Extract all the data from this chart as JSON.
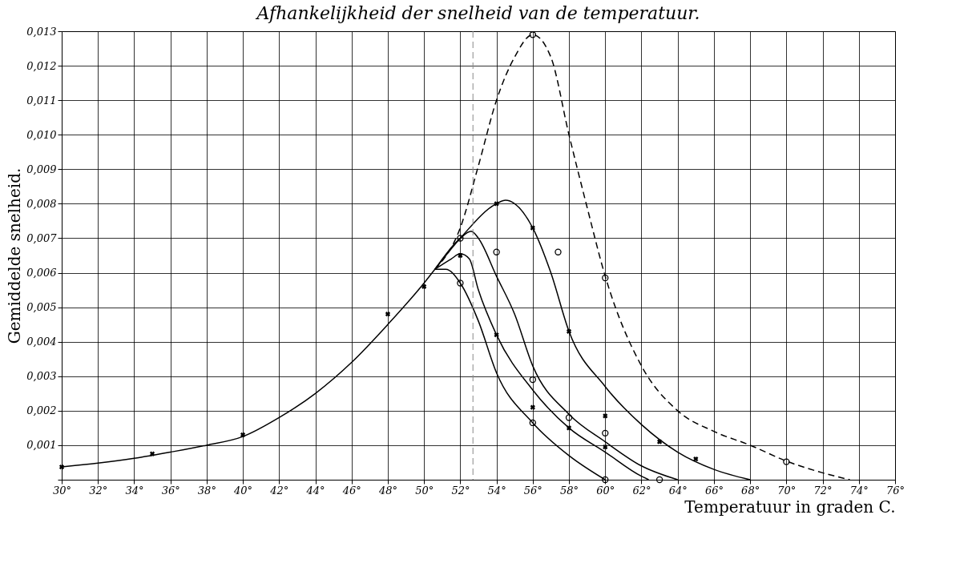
{
  "chart_data": {
    "type": "line",
    "title": "Afhankelijkheid der snelheid van de temperatuur.",
    "xlabel": "Temperatuur in graden C.",
    "ylabel": "Gemiddelde snelheid.",
    "xlim": [
      30,
      76
    ],
    "xticks": [
      {
        "value": 30,
        "label": "30°"
      },
      {
        "value": 32,
        "label": "32°"
      },
      {
        "value": 34,
        "label": "34°"
      },
      {
        "value": 36,
        "label": "36°"
      },
      {
        "value": 38,
        "label": "38°"
      },
      {
        "value": 40,
        "label": "40°"
      },
      {
        "value": 42,
        "label": "42°"
      },
      {
        "value": 44,
        "label": "44°"
      },
      {
        "value": 46,
        "label": "46°"
      },
      {
        "value": 48,
        "label": "48°"
      },
      {
        "value": 50,
        "label": "50°"
      },
      {
        "value": 52,
        "label": "52°"
      },
      {
        "value": 54,
        "label": "54°"
      },
      {
        "value": 56,
        "label": "56°"
      },
      {
        "value": 58,
        "label": "58°"
      },
      {
        "value": 60,
        "label": "60°"
      },
      {
        "value": 62,
        "label": "62°"
      },
      {
        "value": 64,
        "label": "64°"
      },
      {
        "value": 66,
        "label": "66°"
      },
      {
        "value": 68,
        "label": "68°"
      },
      {
        "value": 70,
        "label": "70°"
      },
      {
        "value": 72,
        "label": "72°"
      },
      {
        "value": 74,
        "label": "74°"
      },
      {
        "value": 76,
        "label": "76°"
      }
    ],
    "ylim": [
      0,
      0.013
    ],
    "yticks": [
      {
        "value": 0,
        "label": null
      },
      {
        "value": 0.001,
        "label": "0,001"
      },
      {
        "value": 0.002,
        "label": "0,002"
      },
      {
        "value": 0.003,
        "label": "0,003"
      },
      {
        "value": 0.004,
        "label": "0,004"
      },
      {
        "value": 0.005,
        "label": "0,005"
      },
      {
        "value": 0.006,
        "label": "0,006"
      },
      {
        "value": 0.007,
        "label": "0,007"
      },
      {
        "value": 0.008,
        "label": "0,008"
      },
      {
        "value": 0.009,
        "label": "0,009"
      },
      {
        "value": 0.01,
        "label": "0,010"
      },
      {
        "value": 0.011,
        "label": "0,011"
      },
      {
        "value": 0.012,
        "label": "0,012"
      },
      {
        "value": 0.013,
        "label": "0,013"
      }
    ],
    "grid": true,
    "ref_lines": [
      {
        "axis": "x",
        "value": 52.7,
        "line_style": "dashed",
        "color": "#888888"
      }
    ],
    "series": [
      {
        "color": "#000000",
        "line_style": "solid",
        "marker": "none",
        "x": [
          30,
          32,
          34,
          36,
          38,
          40,
          42,
          44,
          46,
          48,
          50,
          50.6
        ],
        "values": [
          0.00037,
          0.00048,
          0.00062,
          0.0008,
          0.001,
          0.00125,
          0.0018,
          0.0025,
          0.0034,
          0.0045,
          0.0057,
          0.0061
        ]
      },
      {
        "type": "line",
        "color": "#000000",
        "line_style": "solid",
        "marker": "none",
        "x": [
          50.6,
          51.2,
          52,
          53,
          54,
          56,
          58,
          60
        ],
        "values": [
          0.0061,
          0.0061,
          0.0057,
          0.0046,
          0.0031,
          0.00165,
          0.0007,
          0
        ]
      },
      {
        "type": "line",
        "color": "#000000",
        "line_style": "solid",
        "marker": "none",
        "x": [
          50.6,
          51.5,
          52,
          52.5,
          53,
          54,
          56,
          58,
          60,
          62,
          62.4
        ],
        "values": [
          0.0061,
          0.0064,
          0.00655,
          0.0064,
          0.0055,
          0.0042,
          0.0026,
          0.0015,
          0.0008,
          0.0001,
          0
        ]
      },
      {
        "type": "line",
        "color": "#000000",
        "line_style": "solid",
        "marker": "none",
        "x": [
          50.6,
          52,
          52.6,
          53,
          54,
          55,
          56,
          58,
          60,
          62,
          64
        ],
        "values": [
          0.0061,
          0.007,
          0.0072,
          0.007,
          0.0059,
          0.0048,
          0.0033,
          0.0019,
          0.0011,
          0.0004,
          0
        ]
      },
      {
        "type": "line",
        "color": "#000000",
        "line_style": "solid",
        "marker": "none",
        "x": [
          50.6,
          52,
          54,
          54.5,
          55,
          56,
          57,
          58,
          60,
          62,
          64,
          66,
          68
        ],
        "values": [
          0.0061,
          0.007,
          0.008,
          0.0081,
          0.008,
          0.0073,
          0.006,
          0.0043,
          0.0027,
          0.0016,
          0.0008,
          0.0003,
          0
        ]
      },
      {
        "type": "line",
        "color": "#000000",
        "line_style": "dashed",
        "marker": "none",
        "x": [
          50.6,
          52,
          53,
          54,
          55,
          56,
          57,
          58,
          59,
          60,
          62,
          64,
          66,
          68,
          70,
          72,
          73.5
        ],
        "values": [
          0.0061,
          0.0073,
          0.0091,
          0.011,
          0.01225,
          0.0129,
          0.01225,
          0.01,
          0.0079,
          0.0059,
          0.0033,
          0.002,
          0.0014,
          0.001,
          0.00054,
          0.0002,
          0
        ]
      },
      {
        "type": "scatter",
        "color": "#000000",
        "marker": "cross",
        "x": [
          30,
          35,
          40,
          48,
          50,
          52,
          54,
          54,
          56,
          56,
          58,
          58,
          60,
          60,
          63,
          65
        ],
        "values": [
          0.00037,
          0.00075,
          0.0013,
          0.0048,
          0.0056,
          0.0065,
          0.008,
          0.0042,
          0.0073,
          0.0021,
          0.0043,
          0.0015,
          0.00185,
          0.00095,
          0.0011,
          0.0006
        ]
      },
      {
        "type": "scatter",
        "color": "#000000",
        "marker": "circle",
        "x": [
          52,
          52,
          54,
          56,
          56,
          58,
          60,
          60,
          60,
          63,
          70,
          56,
          57.4
        ],
        "values": [
          0.007,
          0.0057,
          0.0066,
          0.0029,
          0.00165,
          0.0018,
          0.00585,
          0.00135,
          0,
          0,
          0.00052,
          0.0129,
          0.0066
        ]
      }
    ]
  }
}
